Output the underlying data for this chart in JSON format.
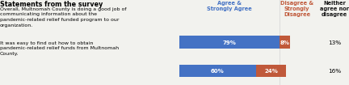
{
  "title": "Statements from the survey",
  "col_header_agree": "Agree &\nStrongly Agree",
  "col_header_disagree": "Disagree &\nStrongly\nDisagree",
  "col_header_neither": "Neither\nagree nor\ndisagree",
  "rows": [
    {
      "label": "Overall, Multnomah County is doing a good job of\ncommunicating information about the\npandemic-related relief funded program to our\norganization.",
      "agree": 79,
      "disagree": 8,
      "neither": "13%"
    },
    {
      "label": "It was easy to find out how to obtain\npandemic-related relief funds from Multnomah\nCounty.",
      "agree": 60,
      "disagree": 24,
      "neither": "16%"
    }
  ],
  "color_agree": "#4472c4",
  "color_disagree": "#c0593a",
  "color_header_agree": "#4472c4",
  "color_header_disagree": "#c0593a",
  "color_header_neither": "#1a1a1a",
  "background_color": "#f2f2ee",
  "title_fontsize": 5.8,
  "label_fontsize": 4.5,
  "header_fontsize": 4.8,
  "bar_text_fontsize": 5.0,
  "neither_fontsize": 5.2
}
